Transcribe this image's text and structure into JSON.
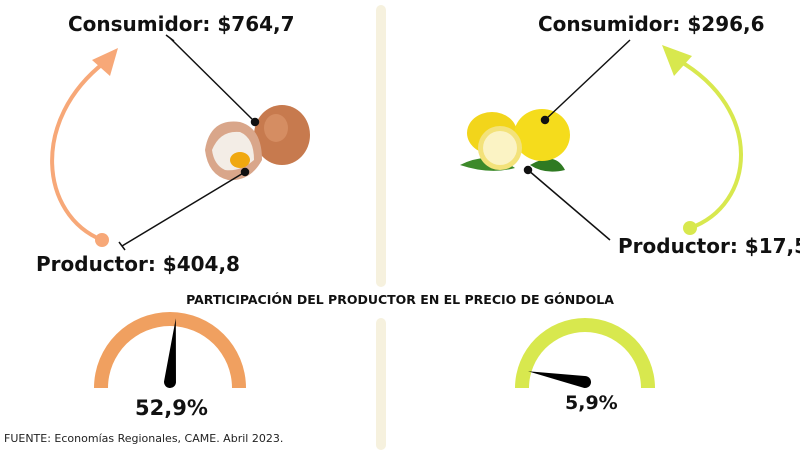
{
  "title": "PARTICIPACIÓN DEL PRODUCTOR EN EL PRECIO DE GÓNDOLA",
  "source": "FUENTE: Economías Regionales, CAME. Abril 2023.",
  "products": [
    {
      "icon": "eggs-image",
      "consumer_label": "Consumidor: $764,7",
      "producer_label": "Productor: $404,8",
      "share_label": "52,9%",
      "share_percent": 52.9,
      "color": "#f0a060"
    },
    {
      "icon": "lemons-image",
      "consumer_label": "Consumidor: $296,6",
      "producer_label": "Productor: $17,5",
      "share_label": "5,9%",
      "share_percent": 5.9,
      "color": "#d8e84e"
    }
  ]
}
